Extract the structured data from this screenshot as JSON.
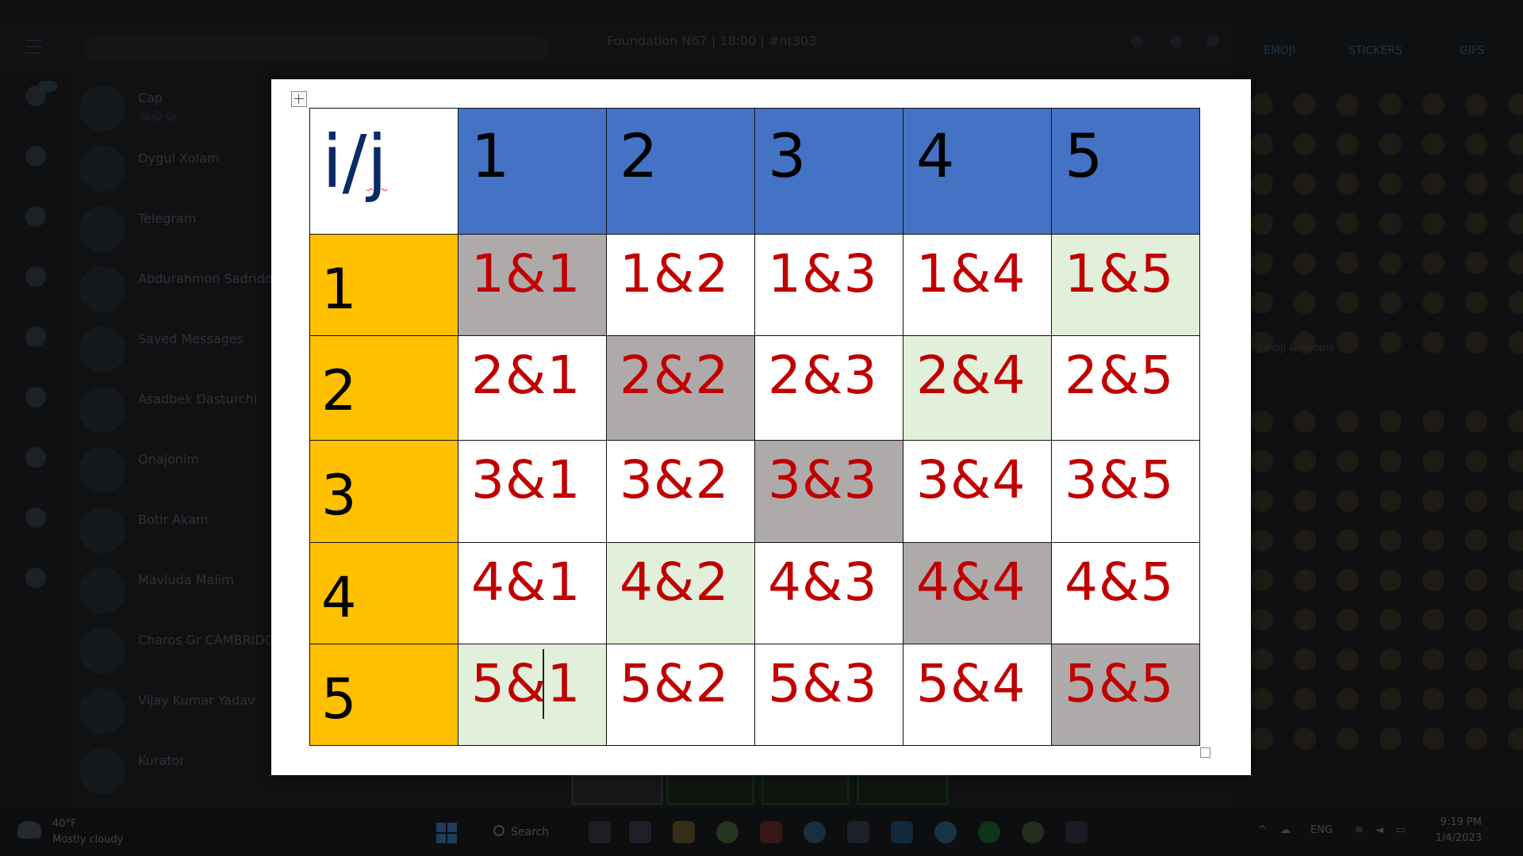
{
  "background": {
    "chat_header_title": "Foundation N67 | 18:00 | #nt303",
    "chats": [
      {
        "name": "Cap",
        "preview": "😂😂😂"
      },
      {
        "name": "Oygul Xolam",
        "preview": ""
      },
      {
        "name": "Telegram",
        "preview": ""
      },
      {
        "name": "Abdurahmon Sadriddinov",
        "preview": ""
      },
      {
        "name": "Saved Messages",
        "preview": ""
      },
      {
        "name": "Asadbek Dasturchi",
        "preview": ""
      },
      {
        "name": "Onajonim",
        "preview": ""
      },
      {
        "name": "Botir Akam",
        "preview": ""
      },
      {
        "name": "Mavluda Malim",
        "preview": ""
      },
      {
        "name": "Charos Gr CAMBRIDGE",
        "preview": ""
      },
      {
        "name": "Vijay Kumar Yadav",
        "preview": ""
      },
      {
        "name": "Kurator",
        "preview": ""
      }
    ],
    "emoji_tabs": [
      "EMOJI",
      "STICKERS",
      "GIFS"
    ],
    "emoji_section": "Emoji & People"
  },
  "taskbar": {
    "weather_temp": "40°F",
    "weather_desc": "Mostly cloudy",
    "search_label": "Search",
    "language": "ENG",
    "time": "9:19 PM",
    "date": "1/4/2023"
  },
  "table": {
    "corner_i": "i/",
    "corner_j": "j",
    "col_headers": [
      "1",
      "2",
      "3",
      "4",
      "5"
    ],
    "rows": [
      {
        "header": "1",
        "cells": [
          "1&1",
          "1&2",
          "1&3",
          "1&4",
          "1&5"
        ]
      },
      {
        "header": "2",
        "cells": [
          "2&1",
          "2&2",
          "2&3",
          "2&4",
          "2&5"
        ]
      },
      {
        "header": "3",
        "cells": [
          "3&1",
          "3&2",
          "3&3",
          "3&4",
          "3&5"
        ]
      },
      {
        "header": "4",
        "cells": [
          "4&1",
          "4&2",
          "4&3",
          "4&4",
          "4&5"
        ]
      },
      {
        "header": "5",
        "cells": [
          "5&1",
          "5&2",
          "5&3",
          "5&4",
          "5&5"
        ]
      }
    ],
    "colors": {
      "column_header_fill": "#4472c4",
      "row_header_fill": "#ffc000",
      "diagonal_fill": "#aeaaaa",
      "highlight_fill": "#e2efda",
      "cell_text": "#c00000"
    }
  }
}
